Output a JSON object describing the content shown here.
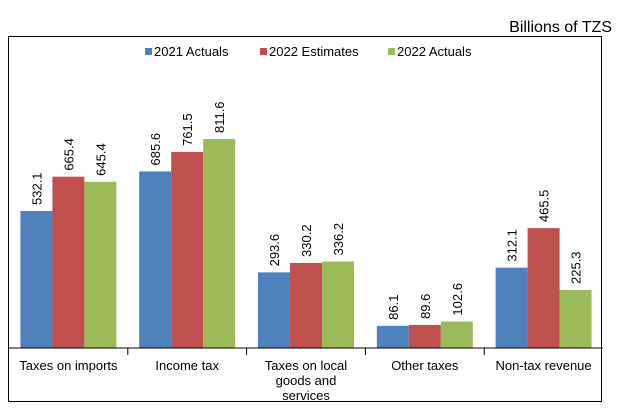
{
  "chart_data": {
    "type": "bar",
    "unit_label": "Billions of TZS",
    "categories": [
      [
        "Taxes on imports"
      ],
      [
        "Income tax"
      ],
      [
        "Taxes on local",
        "goods and",
        "services"
      ],
      [
        "Other taxes"
      ],
      [
        "Non-tax revenue"
      ]
    ],
    "series": [
      {
        "name": "2021 Actuals",
        "color": "#4F81BD",
        "values": [
          532.1,
          685.6,
          293.6,
          86.1,
          312.1
        ]
      },
      {
        "name": "2022 Estimates",
        "color": "#C0504D",
        "values": [
          665.4,
          761.5,
          330.2,
          89.6,
          465.5
        ]
      },
      {
        "name": "2022 Actuals",
        "color": "#9BBB59",
        "values": [
          645.4,
          811.6,
          336.2,
          102.6,
          225.3
        ]
      }
    ],
    "value_labels": [
      [
        "532.1",
        "685.6",
        "293.6",
        "86.1",
        "312.1"
      ],
      [
        "665.4",
        "761.5",
        "330.2",
        "89.6",
        "465.5"
      ],
      [
        "645.4",
        "811.6",
        "336.2",
        "102.6",
        "225.3"
      ]
    ],
    "ylim": [
      0,
      1000
    ],
    "grid": false,
    "legend_position": "top"
  }
}
